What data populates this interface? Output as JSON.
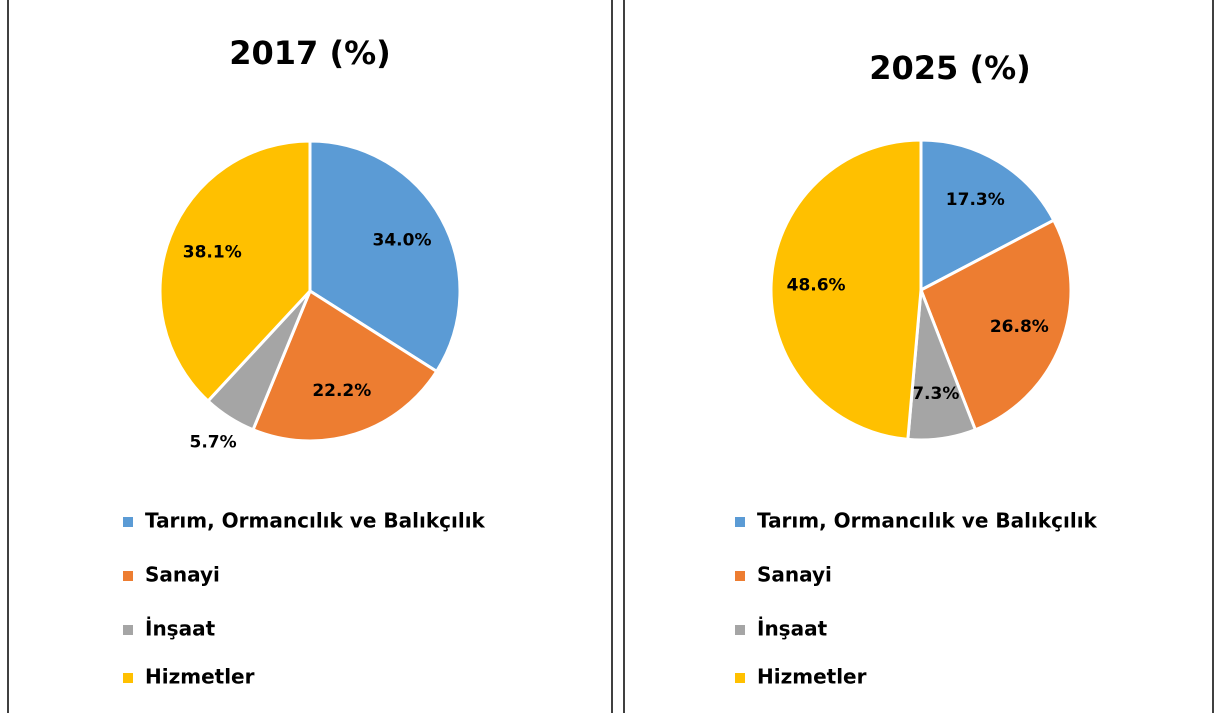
{
  "chart_data": [
    {
      "type": "pie",
      "title": "2017 (%)",
      "categories": [
        "Tarım, Ormancılık ve Balıkçılık",
        "Sanayi",
        "İnşaat",
        "Hizmetler"
      ],
      "values": [
        34,
        22.2,
        5.7,
        38.1
      ],
      "value_labels": [
        "34.0%",
        "22.2%",
        "5.7%",
        "38.1%"
      ],
      "colors": [
        "#5b9bd5",
        "#ed7d31",
        "#a5a5a5",
        "#ffc000"
      ]
    },
    {
      "type": "pie",
      "title": "2025 (%)",
      "categories": [
        "Tarım, Ormancılık ve Balıkçılık",
        "Sanayi",
        "İnşaat",
        "Hizmetler"
      ],
      "values": [
        17.3,
        26.8,
        7.3,
        48.6
      ],
      "value_labels": [
        "17.3%",
        "26.8%",
        "7.3%",
        "48.6%"
      ],
      "colors": [
        "#5b9bd5",
        "#ed7d31",
        "#a5a5a5",
        "#ffc000"
      ]
    }
  ]
}
